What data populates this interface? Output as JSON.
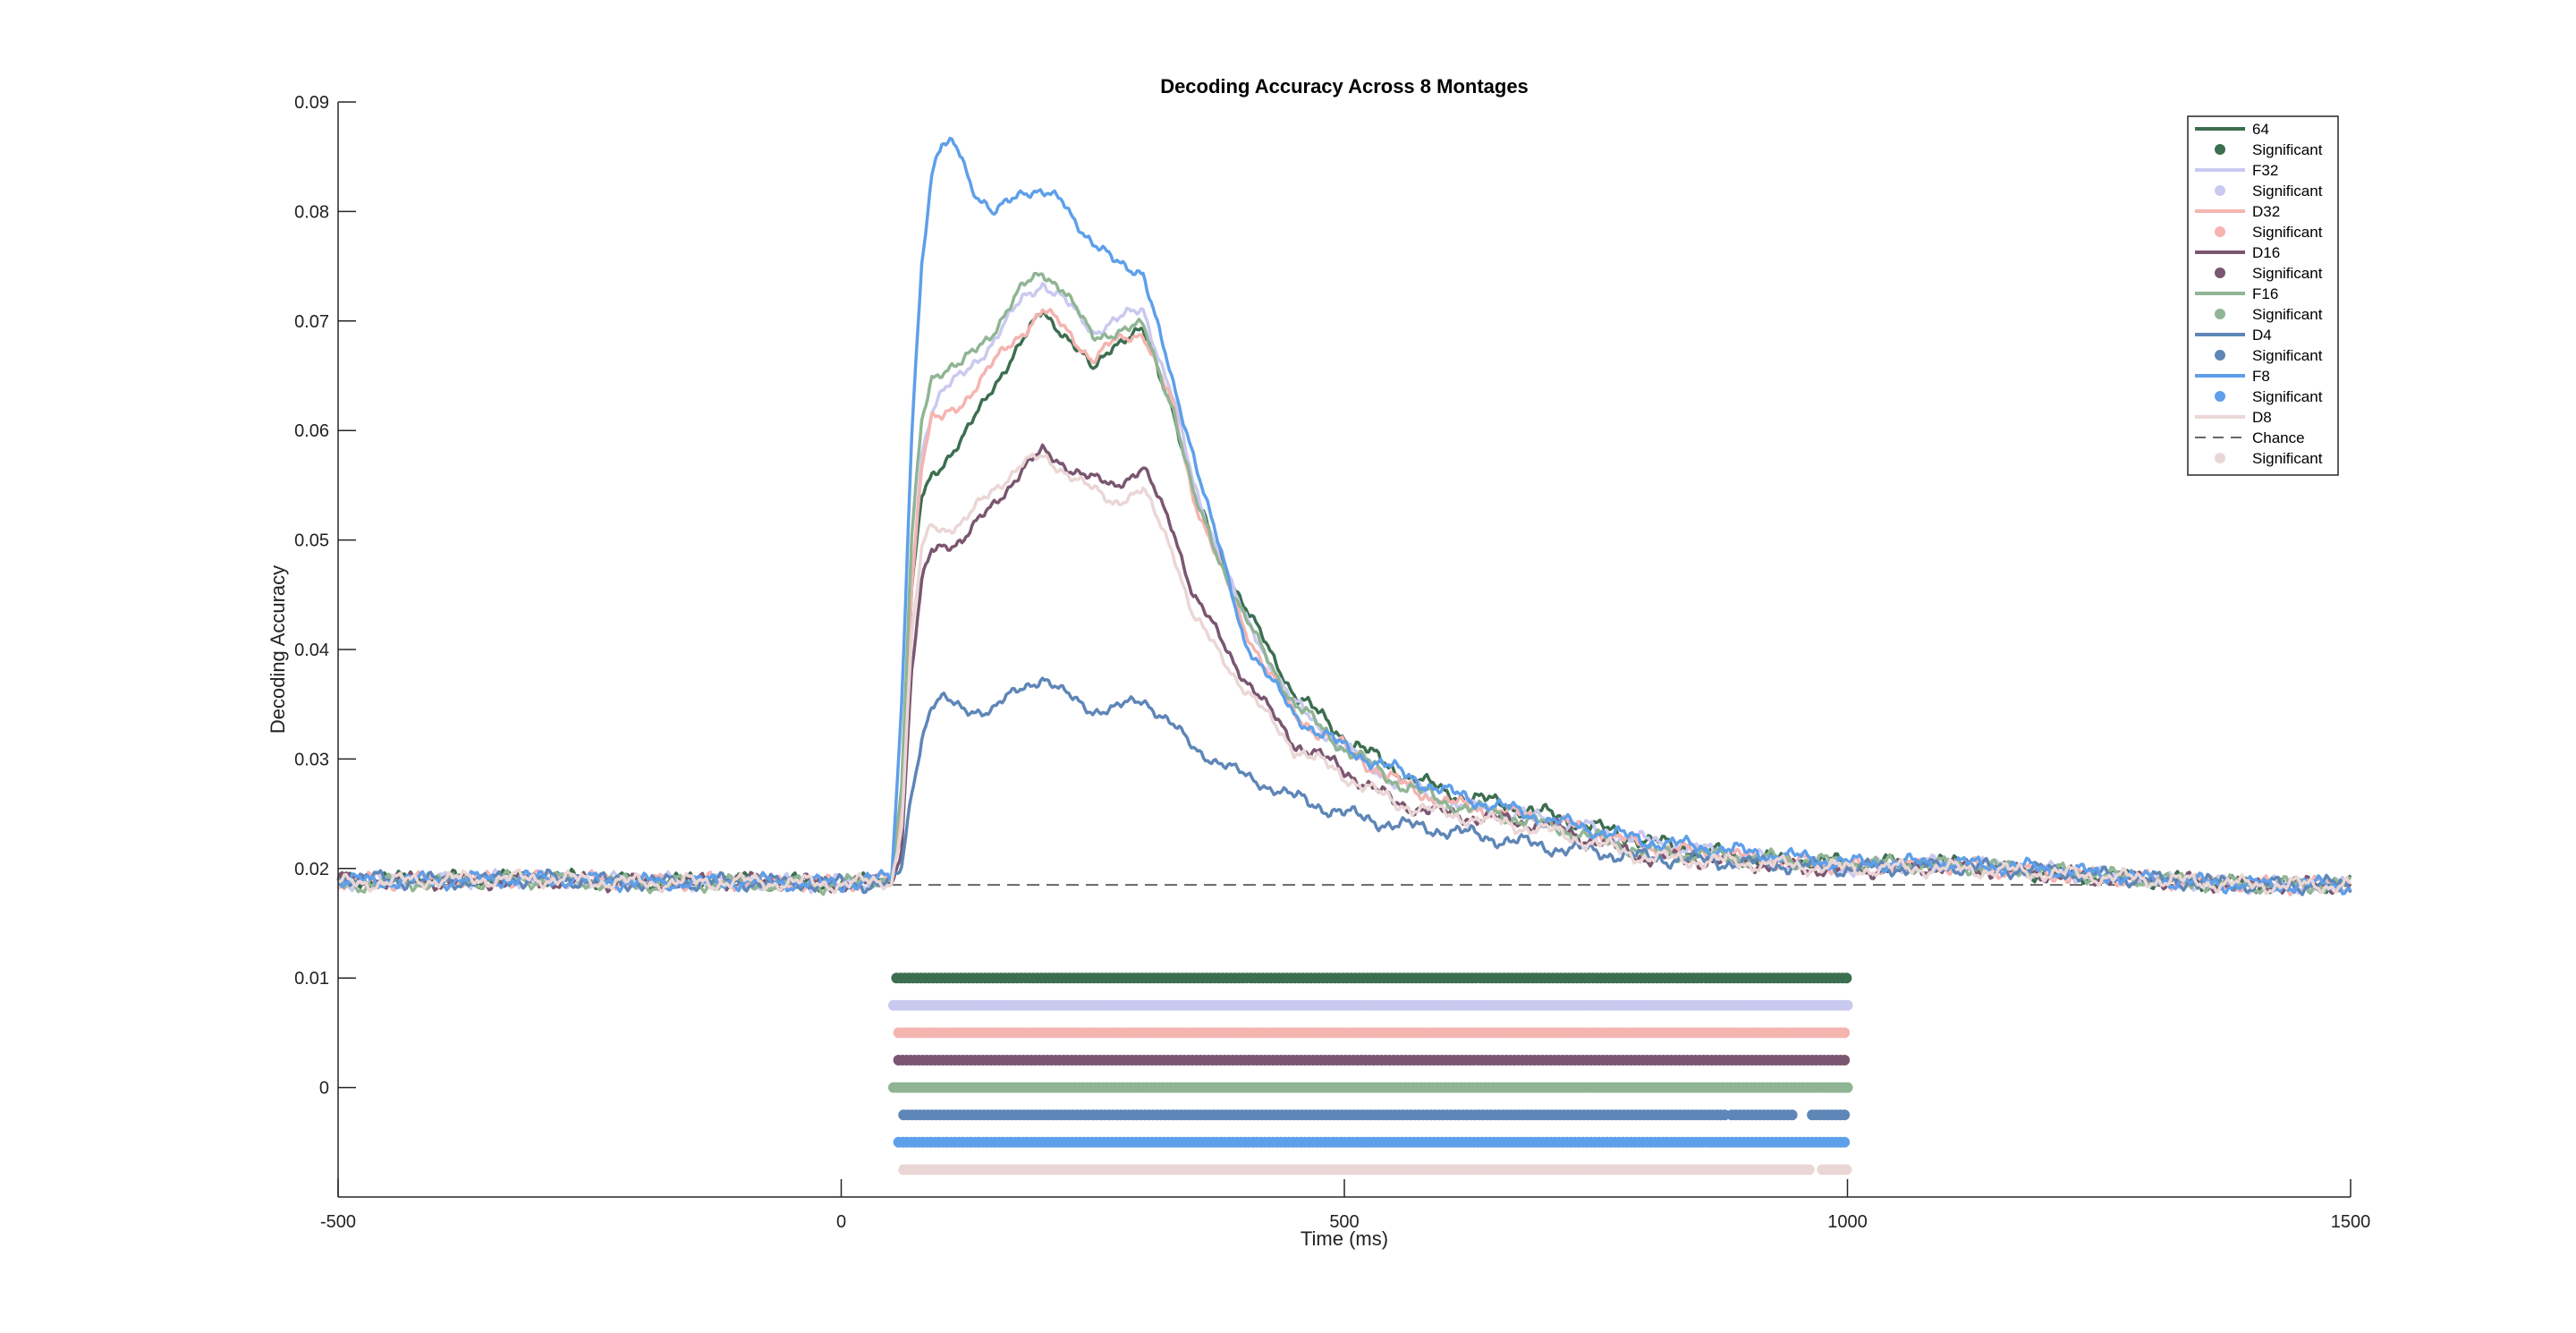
{
  "chart_data": {
    "type": "line",
    "title": "Decoding Accuracy Across 8 Montages",
    "xlabel": "Time (ms)",
    "ylabel": "Decoding Accuracy",
    "xlim": [
      -500,
      1500
    ],
    "ylim": [
      -0.01,
      0.09
    ],
    "xticks": [
      -500,
      0,
      500,
      1000,
      1500
    ],
    "yticks": [
      0,
      0.01,
      0.02,
      0.03,
      0.04,
      0.05,
      0.06,
      0.07,
      0.08,
      0.09
    ],
    "xtick_labels": [
      "-500",
      "0",
      "500",
      "1000",
      "1500"
    ],
    "ytick_labels": [
      "0",
      "0.01",
      "0.02",
      "0.03",
      "0.04",
      "0.05",
      "0.06",
      "0.07",
      "0.08",
      "0.09"
    ],
    "grid": false,
    "legend_position": "top-right",
    "chance": {
      "name": "Chance",
      "y": 0.0185,
      "color": "#666666",
      "style": "dashed"
    },
    "series": [
      {
        "name": "64",
        "color": "#3C6E50",
        "x": [
          -500,
          -400,
          -300,
          -200,
          -100,
          0,
          50,
          60,
          70,
          80,
          90,
          100,
          120,
          150,
          180,
          200,
          220,
          250,
          270,
          300,
          330,
          350,
          400,
          450,
          500,
          550,
          600,
          700,
          800,
          900,
          1000,
          1100,
          1200,
          1300,
          1400,
          1500
        ],
        "y": [
          0.019,
          0.019,
          0.0192,
          0.0188,
          0.0189,
          0.0186,
          0.0192,
          0.025,
          0.045,
          0.054,
          0.056,
          0.057,
          0.059,
          0.064,
          0.068,
          0.071,
          0.069,
          0.0655,
          0.068,
          0.069,
          0.062,
          0.054,
          0.044,
          0.036,
          0.032,
          0.029,
          0.027,
          0.025,
          0.0225,
          0.021,
          0.0205,
          0.0205,
          0.0195,
          0.019,
          0.0185,
          0.0185
        ],
        "significant_range": [
          [
            55,
            1000
          ]
        ],
        "sig_row_y": 0.01
      },
      {
        "name": "F32",
        "color": "#C9C9F0",
        "x": [
          -500,
          -400,
          -300,
          -200,
          -100,
          0,
          50,
          60,
          70,
          80,
          90,
          100,
          120,
          150,
          180,
          200,
          220,
          250,
          270,
          300,
          330,
          350,
          400,
          450,
          500,
          550,
          600,
          700,
          800,
          900,
          1000,
          1100,
          1200,
          1300,
          1400,
          1500
        ],
        "y": [
          0.0188,
          0.019,
          0.019,
          0.0189,
          0.0187,
          0.0187,
          0.019,
          0.025,
          0.046,
          0.058,
          0.062,
          0.0635,
          0.065,
          0.068,
          0.072,
          0.0735,
          0.072,
          0.069,
          0.07,
          0.071,
          0.063,
          0.055,
          0.043,
          0.035,
          0.031,
          0.028,
          0.026,
          0.0245,
          0.0225,
          0.021,
          0.02,
          0.0205,
          0.0198,
          0.019,
          0.0185,
          0.0185
        ],
        "significant_range": [
          [
            52,
            1000
          ]
        ],
        "sig_row_y": 0.0075
      },
      {
        "name": "D32",
        "color": "#F5B4B0",
        "x": [
          -500,
          -400,
          -300,
          -200,
          -100,
          0,
          50,
          60,
          70,
          80,
          90,
          100,
          120,
          150,
          180,
          200,
          220,
          250,
          270,
          300,
          330,
          350,
          400,
          450,
          500,
          550,
          600,
          700,
          800,
          900,
          1000,
          1100,
          1200,
          1300,
          1400,
          1500
        ],
        "y": [
          0.0188,
          0.0189,
          0.0191,
          0.0188,
          0.0188,
          0.0186,
          0.019,
          0.025,
          0.046,
          0.057,
          0.061,
          0.061,
          0.0625,
          0.066,
          0.069,
          0.071,
          0.0695,
          0.0665,
          0.068,
          0.069,
          0.062,
          0.054,
          0.042,
          0.034,
          0.031,
          0.028,
          0.026,
          0.0245,
          0.022,
          0.021,
          0.0202,
          0.0203,
          0.0195,
          0.019,
          0.0185,
          0.0185
        ],
        "significant_range": [
          [
            57,
            1000
          ]
        ],
        "sig_row_y": 0.005
      },
      {
        "name": "D16",
        "color": "#7A5670",
        "x": [
          -500,
          -400,
          -300,
          -200,
          -100,
          0,
          50,
          60,
          70,
          80,
          90,
          100,
          120,
          150,
          180,
          200,
          220,
          250,
          270,
          300,
          330,
          350,
          400,
          450,
          500,
          550,
          600,
          700,
          800,
          900,
          1000,
          1100,
          1200,
          1300,
          1400,
          1500
        ],
        "y": [
          0.019,
          0.0188,
          0.0189,
          0.0187,
          0.0189,
          0.0186,
          0.0188,
          0.022,
          0.038,
          0.046,
          0.049,
          0.0495,
          0.05,
          0.053,
          0.0565,
          0.058,
          0.057,
          0.0555,
          0.055,
          0.0565,
          0.051,
          0.045,
          0.0375,
          0.0315,
          0.029,
          0.026,
          0.025,
          0.024,
          0.021,
          0.0205,
          0.0198,
          0.0202,
          0.0195,
          0.019,
          0.0185,
          0.0185
        ],
        "significant_range": [
          [
            57,
            1000
          ]
        ],
        "sig_row_y": 0.0025
      },
      {
        "name": "F16",
        "color": "#90B594",
        "x": [
          -500,
          -400,
          -300,
          -200,
          -100,
          0,
          50,
          60,
          70,
          80,
          90,
          100,
          120,
          150,
          180,
          200,
          220,
          250,
          270,
          300,
          330,
          350,
          400,
          450,
          500,
          550,
          600,
          700,
          800,
          900,
          1000,
          1100,
          1200,
          1300,
          1400,
          1500
        ],
        "y": [
          0.0185,
          0.0188,
          0.019,
          0.0186,
          0.0187,
          0.0185,
          0.0192,
          0.027,
          0.05,
          0.061,
          0.065,
          0.0655,
          0.066,
          0.069,
          0.073,
          0.0745,
          0.073,
          0.0685,
          0.069,
          0.0695,
          0.062,
          0.054,
          0.043,
          0.035,
          0.031,
          0.028,
          0.026,
          0.024,
          0.0215,
          0.021,
          0.0205,
          0.0203,
          0.0198,
          0.019,
          0.0185,
          0.0185
        ],
        "significant_range": [
          [
            52,
            1000
          ]
        ],
        "sig_row_y": 0.0
      },
      {
        "name": "D4",
        "color": "#5E86B7",
        "x": [
          -500,
          -400,
          -300,
          -200,
          -100,
          0,
          50,
          60,
          70,
          80,
          90,
          100,
          120,
          150,
          180,
          200,
          220,
          250,
          270,
          300,
          330,
          350,
          400,
          450,
          500,
          550,
          600,
          700,
          800,
          900,
          1000,
          1100,
          1200,
          1300,
          1400,
          1500
        ],
        "y": [
          0.0192,
          0.0188,
          0.0191,
          0.0187,
          0.0188,
          0.0186,
          0.0186,
          0.02,
          0.027,
          0.032,
          0.035,
          0.0355,
          0.0345,
          0.0345,
          0.0365,
          0.0375,
          0.036,
          0.0345,
          0.0345,
          0.0355,
          0.033,
          0.031,
          0.0285,
          0.0265,
          0.025,
          0.024,
          0.0235,
          0.022,
          0.021,
          0.0205,
          0.02,
          0.0202,
          0.0198,
          0.019,
          0.0185,
          0.0185
        ],
        "significant_range": [
          [
            62,
            880
          ],
          [
            885,
            945
          ],
          [
            965,
            1000
          ]
        ],
        "sig_row_y": -0.0025
      },
      {
        "name": "F8",
        "color": "#5E9FEA",
        "x": [
          -500,
          -400,
          -300,
          -200,
          -100,
          0,
          50,
          60,
          70,
          80,
          90,
          100,
          110,
          120,
          130,
          150,
          170,
          180,
          200,
          220,
          250,
          270,
          300,
          330,
          350,
          400,
          450,
          500,
          550,
          600,
          700,
          800,
          900,
          1000,
          1100,
          1200,
          1300,
          1400,
          1500
        ],
        "y": [
          0.0188,
          0.0189,
          0.0191,
          0.0187,
          0.0188,
          0.0186,
          0.0192,
          0.035,
          0.06,
          0.075,
          0.083,
          0.086,
          0.0865,
          0.0855,
          0.082,
          0.0795,
          0.0815,
          0.082,
          0.0815,
          0.081,
          0.077,
          0.0755,
          0.0745,
          0.064,
          0.058,
          0.041,
          0.034,
          0.031,
          0.029,
          0.027,
          0.0245,
          0.0225,
          0.0215,
          0.0205,
          0.0205,
          0.02,
          0.019,
          0.0185,
          0.0185
        ],
        "significant_range": [
          [
            57,
            1000
          ]
        ],
        "sig_row_y": -0.005
      },
      {
        "name": "D8",
        "color": "#EBD6D6",
        "x": [
          -500,
          -400,
          -300,
          -200,
          -100,
          0,
          50,
          60,
          70,
          80,
          90,
          100,
          120,
          150,
          180,
          200,
          220,
          250,
          270,
          300,
          330,
          350,
          400,
          450,
          500,
          550,
          600,
          700,
          800,
          900,
          1000,
          1100,
          1200,
          1300,
          1400,
          1500
        ],
        "y": [
          0.0186,
          0.019,
          0.0191,
          0.0187,
          0.0188,
          0.0186,
          0.0188,
          0.024,
          0.041,
          0.049,
          0.0515,
          0.051,
          0.0515,
          0.0545,
          0.057,
          0.0575,
          0.0565,
          0.0545,
          0.0535,
          0.0545,
          0.049,
          0.043,
          0.0365,
          0.031,
          0.0285,
          0.026,
          0.025,
          0.0235,
          0.021,
          0.0205,
          0.02,
          0.02,
          0.0196,
          0.019,
          0.0185,
          0.0185
        ],
        "significant_range": [
          [
            62,
            965
          ],
          [
            975,
            1000
          ]
        ],
        "sig_row_y": -0.0075
      }
    ],
    "legend_entries": [
      "64",
      "Significant",
      "F32",
      "Significant",
      "D32",
      "Significant",
      "D16",
      "Significant",
      "F16",
      "Significant",
      "D4",
      "Significant",
      "F8",
      "Significant",
      "D8",
      "Chance",
      "Significant"
    ]
  }
}
